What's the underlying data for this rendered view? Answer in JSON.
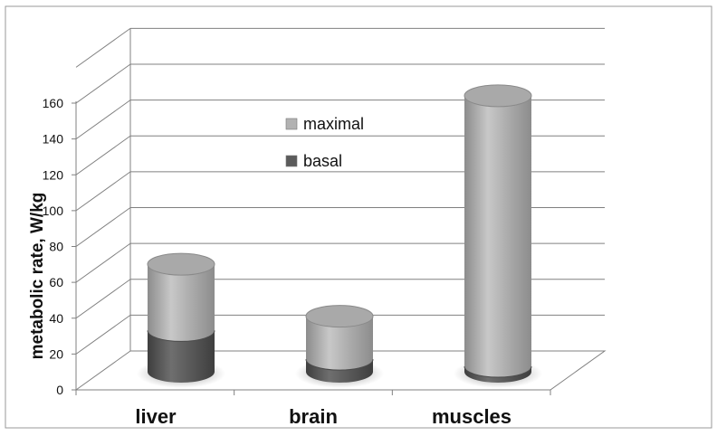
{
  "chart_data": {
    "type": "bar",
    "title": "",
    "xlabel": "",
    "ylabel": "metabolic  rate, W/kg",
    "ylim": [
      0,
      160
    ],
    "yticks": [
      0,
      20,
      40,
      60,
      80,
      100,
      120,
      140,
      160
    ],
    "categories": [
      "liver",
      "brain",
      "muscles"
    ],
    "stacked": true,
    "style": "3d-cylinder",
    "grid": true,
    "legend_position": "top-center",
    "series": [
      {
        "name": "basal",
        "values": [
          23,
          7,
          3
        ],
        "color": "#5b5b5b"
      },
      {
        "name": "maximal",
        "values": [
          37,
          24,
          151
        ],
        "color": "#b2b2b2"
      }
    ],
    "legend": [
      {
        "name": "maximal",
        "color": "#b2b2b2"
      },
      {
        "name": "basal",
        "color": "#5b5b5b"
      }
    ]
  }
}
